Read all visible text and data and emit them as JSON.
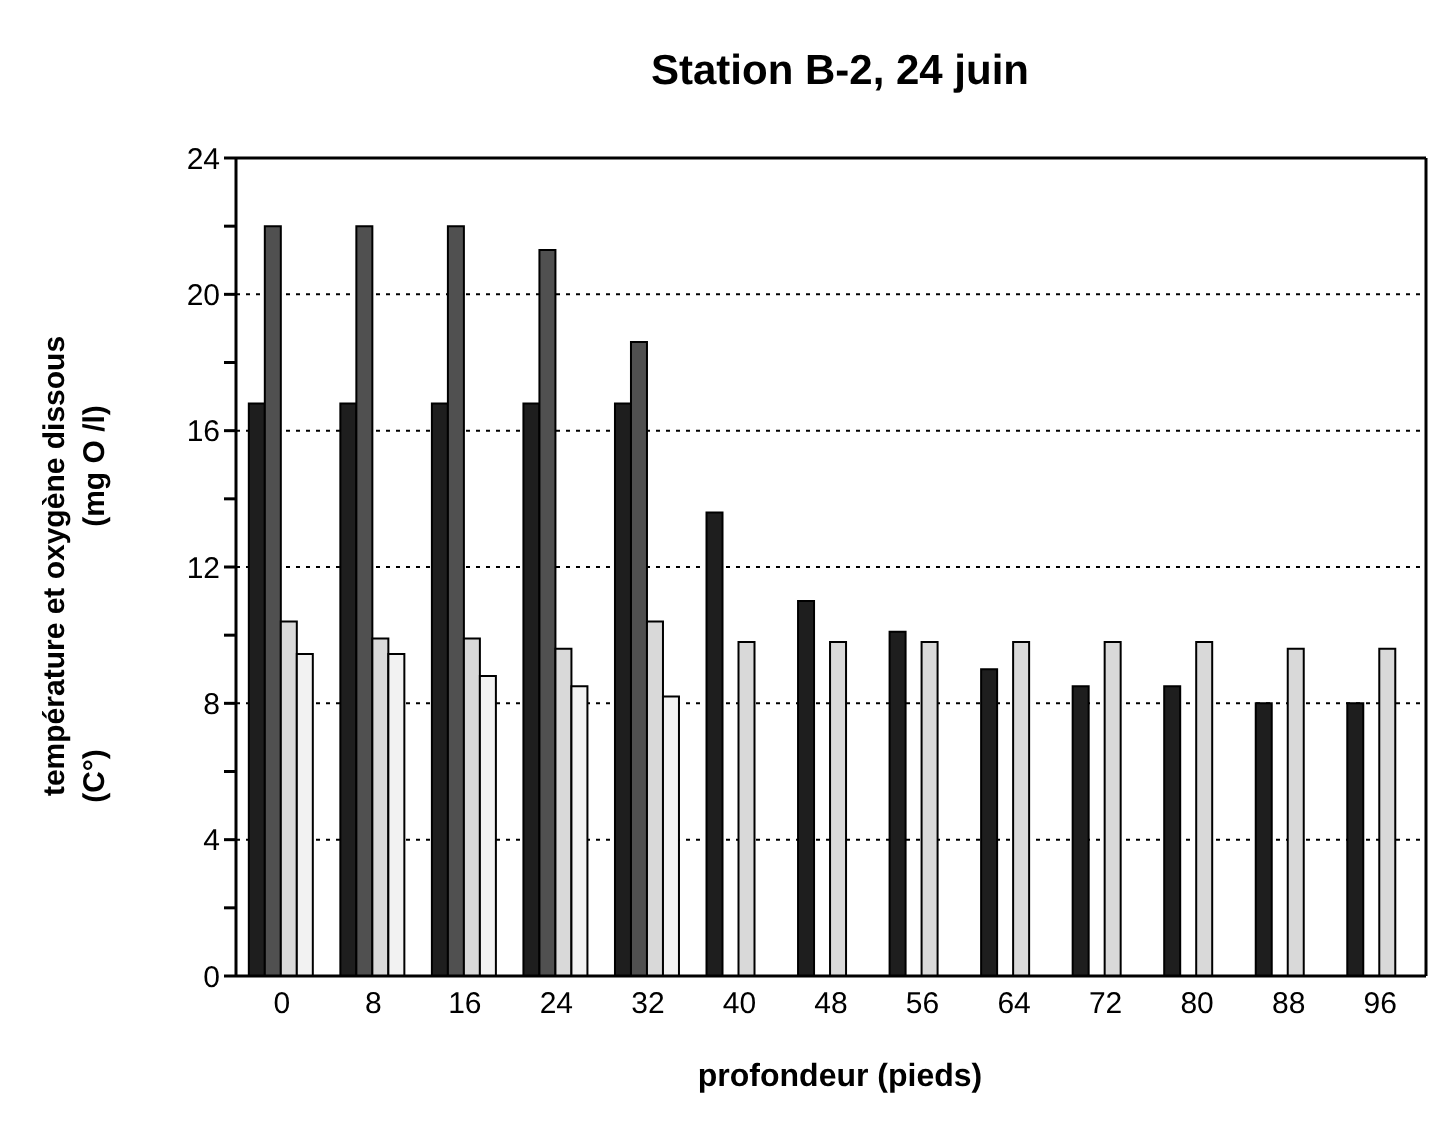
{
  "chart_data": {
    "type": "bar",
    "title": "Station B-2, 24 juin",
    "xlabel": "profondeur (pieds)",
    "ylabel": "température et oxygène dissous\n(C°)\n(mg O /l)",
    "categories": [
      "0",
      "8",
      "16",
      "24",
      "32",
      "40",
      "48",
      "56",
      "64",
      "72",
      "80",
      "88",
      "96"
    ],
    "series": [
      {
        "color": "#1e1e1e",
        "values": [
          16.8,
          16.8,
          16.8,
          16.8,
          16.8,
          13.6,
          11.0,
          10.1,
          9.0,
          8.5,
          8.5,
          8.0,
          8.0
        ]
      },
      {
        "color": "#505050",
        "values": [
          22,
          22,
          22,
          21.3,
          18.6,
          null,
          null,
          null,
          null,
          null,
          null,
          null,
          null
        ]
      },
      {
        "color": "#d9d9d9",
        "values": [
          10.4,
          9.9,
          9.9,
          9.6,
          10.4,
          9.8,
          9.8,
          9.8,
          9.8,
          9.8,
          9.8,
          9.6,
          9.6
        ]
      },
      {
        "color": "#f2f2f2",
        "values": [
          9.45,
          9.45,
          8.8,
          8.5,
          8.2,
          null,
          null,
          null,
          null,
          null,
          null,
          null,
          null
        ]
      }
    ],
    "ylim": [
      0,
      24
    ],
    "yticks": [
      0,
      {
        "value": 2,
        "label": null
      },
      4,
      {
        "value": 6,
        "label": null
      },
      8,
      {
        "value": 10,
        "label": null
      },
      12,
      {
        "value": 14,
        "label": null
      },
      16,
      {
        "value": 18,
        "label": null
      },
      20,
      {
        "value": 22,
        "label": null
      },
      24
    ],
    "grid": "y"
  }
}
